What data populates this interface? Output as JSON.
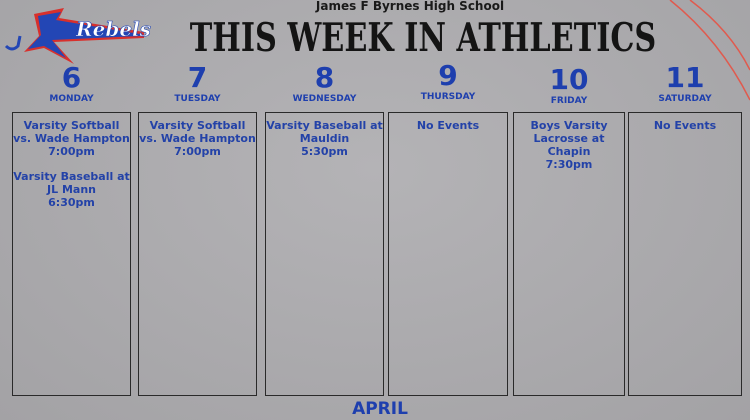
{
  "school": "James F Byrnes High School",
  "title": "THIS WEEK IN ATHLETICS",
  "logo_text": "Rebels",
  "month": "APRIL",
  "colors": {
    "accent": "#1e3fae",
    "logo_red": "#d8302c",
    "background": "#a9a8ab"
  },
  "days": [
    {
      "num": "6",
      "name": "MONDAY",
      "events": [
        {
          "title": "Varsity Softball vs. Wade Hampton",
          "time": "7:00pm"
        },
        {
          "title": "Varsity Baseball at JL Mann",
          "time": "6:30pm"
        }
      ]
    },
    {
      "num": "7",
      "name": "TUESDAY",
      "events": [
        {
          "title": "Varsity Softball vs. Wade Hampton",
          "time": "7:00pm"
        }
      ]
    },
    {
      "num": "8",
      "name": "WEDNESDAY",
      "events": [
        {
          "title": "Varsity Baseball at Mauldin",
          "time": "5:30pm"
        }
      ]
    },
    {
      "num": "9",
      "name": "THURSDAY",
      "events": [
        {
          "title": "No Events",
          "time": ""
        }
      ]
    },
    {
      "num": "10",
      "name": "FRIDAY",
      "events": [
        {
          "title": "Boys Varsity Lacrosse at Chapin",
          "time": "7:30pm"
        }
      ]
    },
    {
      "num": "11",
      "name": "SATURDAY",
      "events": [
        {
          "title": "No Events",
          "time": ""
        }
      ]
    }
  ]
}
